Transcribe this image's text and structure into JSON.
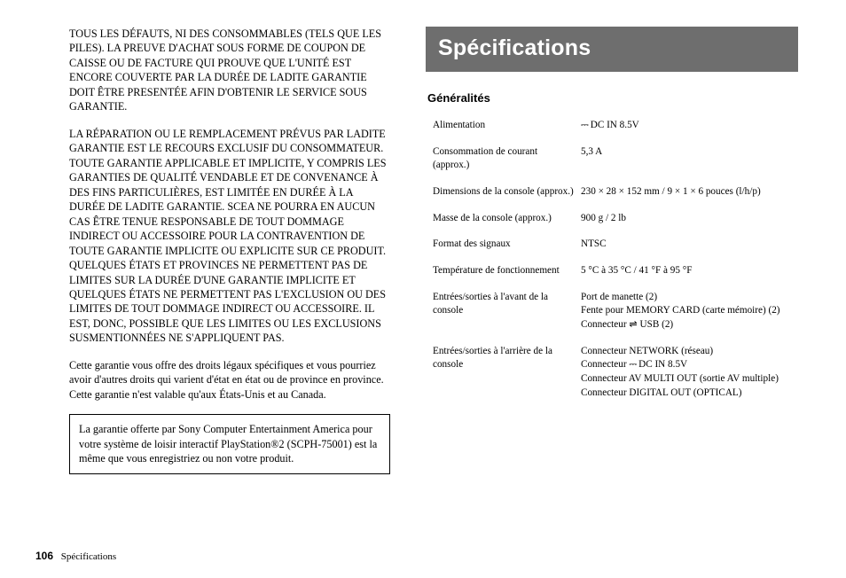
{
  "left": {
    "para1": "TOUS LES DÉFAUTS, NI DES CONSOMMABLES (TELS QUE LES PILES). LA PREUVE D'ACHAT SOUS FORME DE COUPON DE CAISSE OU DE FACTURE QUI PROUVE QUE L'UNITÉ EST ENCORE COUVERTE PAR LA DURÉE DE LADITE GARANTIE DOIT ÊTRE PRESENTÉE AFIN D'OBTENIR LE SERVICE SOUS GARANTIE.",
    "para2": "LA RÉPARATION OU LE REMPLACEMENT PRÉVUS PAR LADITE GARANTIE EST LE RECOURS EXCLUSIF DU CONSOMMATEUR. TOUTE GARANTIE APPLICABLE ET IMPLICITE, Y COMPRIS LES GARANTIES DE QUALITÉ VENDABLE ET DE CONVENANCE À DES FINS PARTICULIÈRES, EST LIMITÉE EN DURÉE À LA DURÉE DE LADITE GARANTIE. SCEA NE POURRA EN AUCUN CAS ÊTRE TENUE RESPONSABLE DE TOUT DOMMAGE INDIRECT OU ACCESSOIRE POUR LA CONTRAVENTION DE TOUTE GARANTIE IMPLICITE OU EXPLICITE SUR CE PRODUIT. QUELQUES ÉTATS ET PROVINCES NE PERMETTENT PAS DE LIMITES SUR LA DURÉE D'UNE GARANTIE IMPLICITE ET QUELQUES ÉTATS NE PERMETTENT PAS L'EXCLUSION OU DES LIMITES DE TOUT DOMMAGE INDIRECT OU ACCESSOIRE. IL EST, DONC, POSSIBLE QUE LES LIMITES OU LES EXCLUSIONS SUSMENTIONNÉES NE S'APPLIQUENT PAS.",
    "para3": "Cette garantie vous offre des droits légaux spécifiques et vous pourriez avoir d'autres droits qui varient d'état en état ou de province en province. Cette garantie n'est valable qu'aux États-Unis et au Canada.",
    "boxed": "La garantie offerte par Sony Computer Entertainment America pour votre système de loisir interactif PlayStation®2 (SCPH-75001) est la même que vous enregistriez ou non votre produit."
  },
  "right": {
    "banner": "Spécifications",
    "subhead": "Généralités",
    "rows": [
      {
        "label": "Alimentation",
        "value_html": "<span class='dc-sym'>⎓</span> DC IN 8.5V"
      },
      {
        "label": "Consommation de courant (approx.)",
        "value_html": "5,3 A"
      },
      {
        "label": "Dimensions de la console (approx.)",
        "value_html": "230 × 28 × 152 mm / 9 × 1 × 6 pouces (l/h/p)"
      },
      {
        "label": "Masse de la console (approx.)",
        "value_html": "900 g / 2 lb"
      },
      {
        "label": "Format des signaux",
        "value_html": "NTSC"
      },
      {
        "label": "Température de fonctionnement",
        "value_html": "5 °C à 35 °C / 41 °F à 95 °F"
      },
      {
        "label": "Entrées/sorties à l'avant de la console",
        "value_html": "Port de manette (2)<br>Fente pour MEMORY CARD (carte mémoire) (2)<br>Connecteur <span class='usb-sym'>⇌</span> USB (2)"
      },
      {
        "label": "Entrées/sorties à l'arrière de la console",
        "value_html": "Connecteur NETWORK (réseau)<br>Connecteur <span class='dc-sym'>⎓</span> DC IN 8.5V<br>Connecteur AV MULTI OUT (sortie AV multiple)<br>Connecteur DIGITAL OUT (OPTICAL)"
      }
    ]
  },
  "footer": {
    "page_number": "106",
    "page_title": "Spécifications"
  }
}
